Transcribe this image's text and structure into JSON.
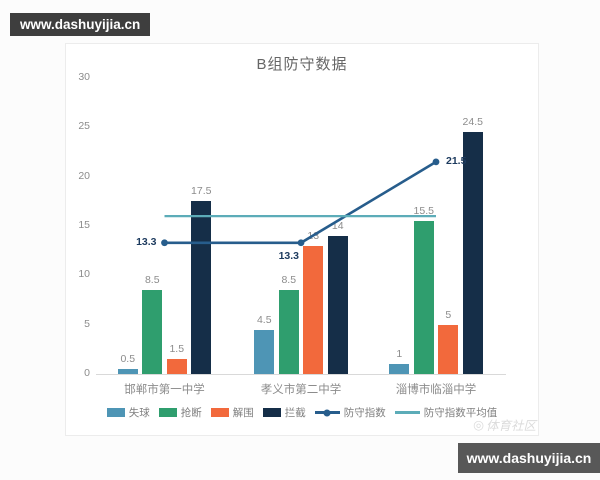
{
  "watermarks": {
    "top_left": "www.dashuyijia.cn",
    "bottom_right": "www.dashuyijia.cn",
    "faint_community": "体育社区"
  },
  "chart_data": {
    "type": "bar",
    "combo": "bar+line",
    "title": "B组防守数据",
    "categories": [
      "邯郸市第一中学",
      "孝义市第二中学",
      "淄博市临淄中学"
    ],
    "series": [
      {
        "id": "goals-conceded",
        "name": "失球",
        "type": "bar",
        "color": "#4e95b5",
        "values": [
          0.5,
          4.5,
          1
        ]
      },
      {
        "id": "tackles",
        "name": "抢断",
        "type": "bar",
        "color": "#2f9e6e",
        "values": [
          8.5,
          8.5,
          15.5
        ]
      },
      {
        "id": "clearances",
        "name": "解围",
        "type": "bar",
        "color": "#f2693c",
        "values": [
          1.5,
          13,
          5
        ]
      },
      {
        "id": "interceptions",
        "name": "拦截",
        "type": "bar",
        "color": "#152e48",
        "values": [
          17.5,
          14,
          24.5
        ]
      },
      {
        "id": "defense-index",
        "name": "防守指数",
        "type": "line",
        "color": "#275d8c",
        "marker": true,
        "show_point_labels": true,
        "values": [
          13.3,
          13.3,
          21.5
        ]
      },
      {
        "id": "defense-index-average",
        "name": "防守指数平均值",
        "type": "line",
        "color": "#5cacb8",
        "marker": false,
        "show_point_labels": false,
        "values": [
          16,
          16,
          16
        ]
      }
    ],
    "ylim": [
      0,
      30
    ],
    "yticks": [
      0,
      5,
      10,
      15,
      20,
      25,
      30
    ],
    "xlabel": "",
    "ylabel": "",
    "grid": false,
    "legend_position": "bottom",
    "value_labels": true
  }
}
